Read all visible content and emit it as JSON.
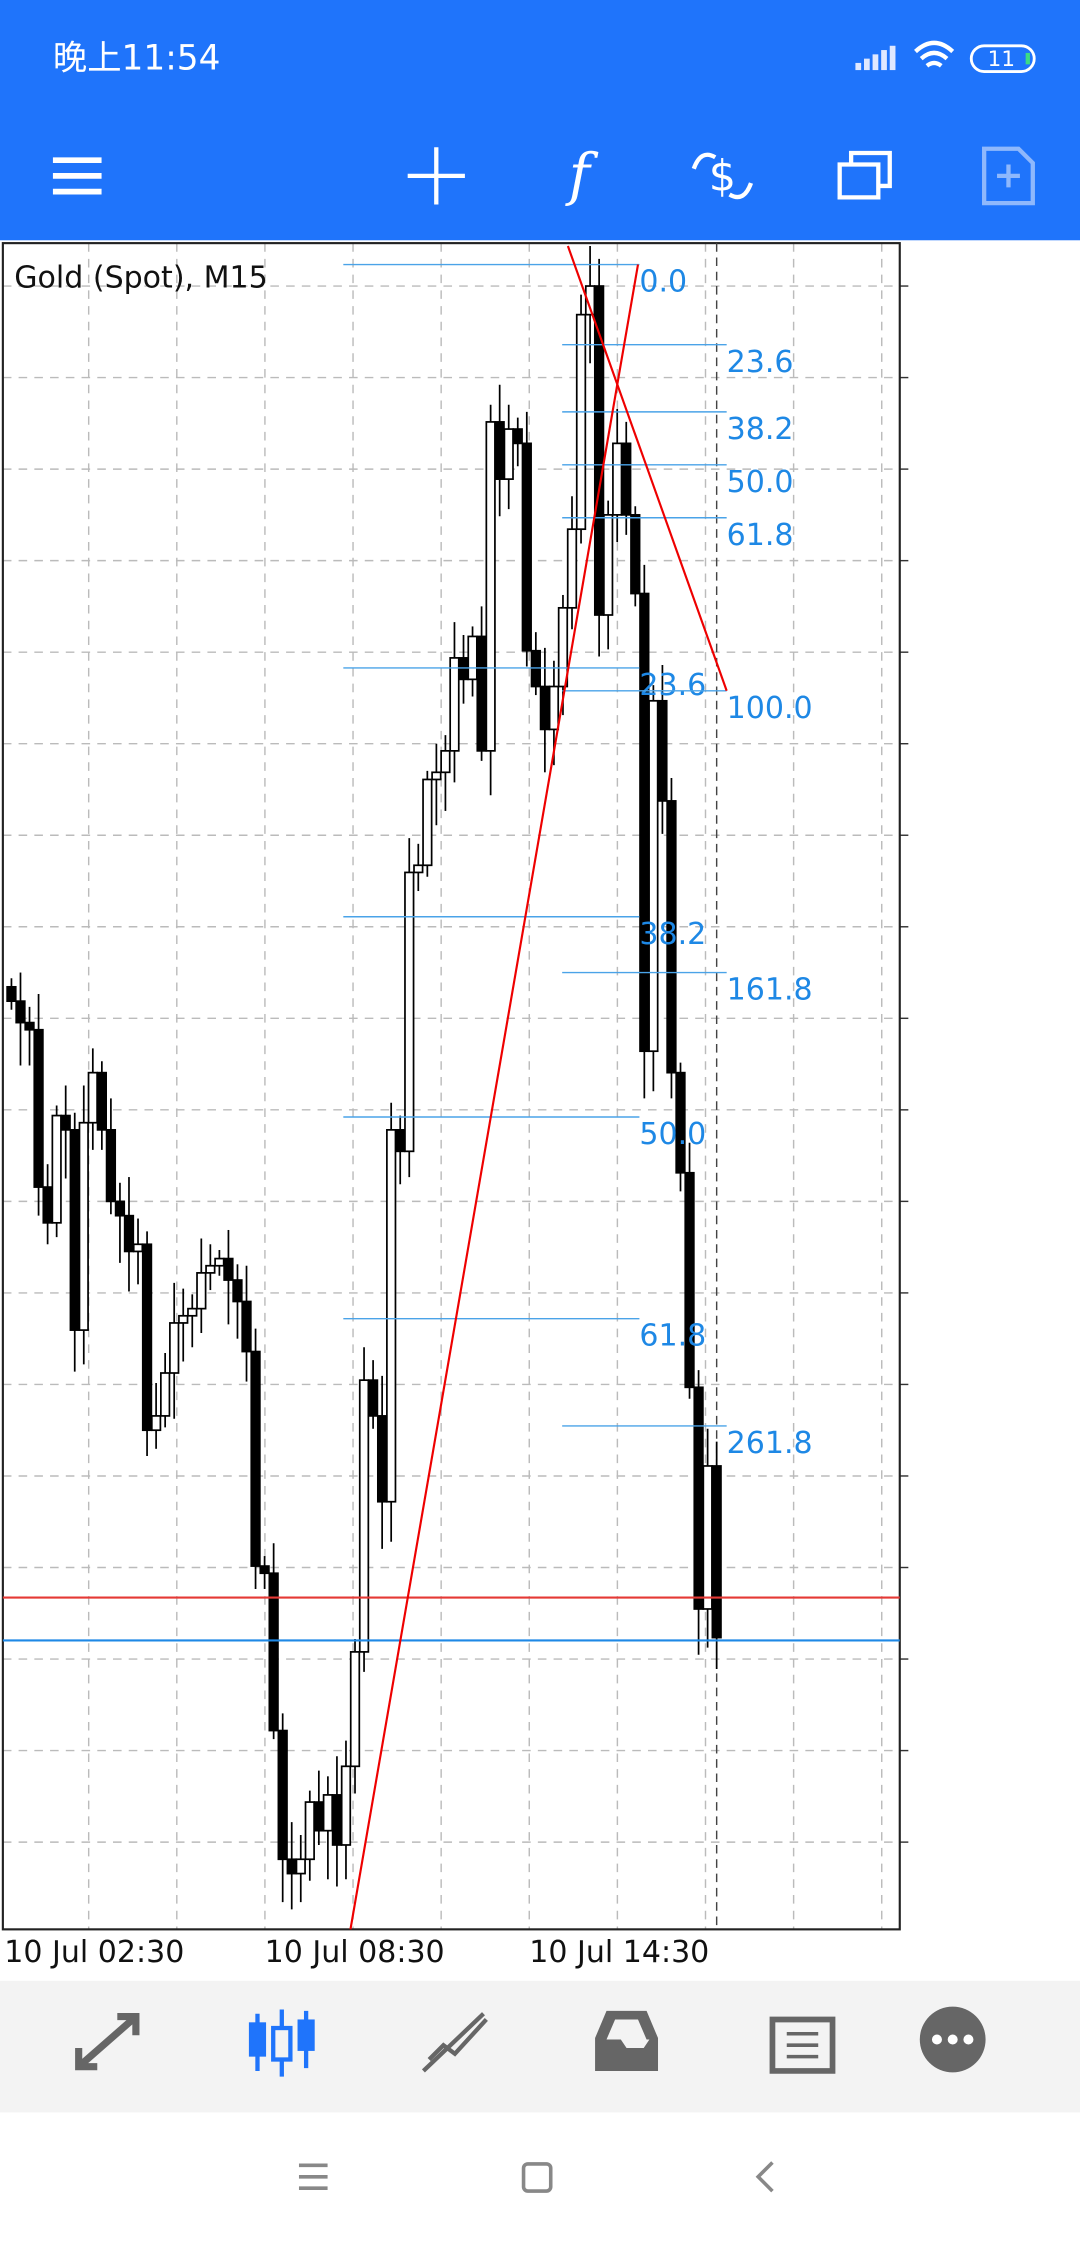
{
  "status_bar": {
    "time": "晚上11:54",
    "battery": "11"
  },
  "chart": {
    "symbol": "Gold (Spot), M15",
    "fib_a_levels": [
      "0.0",
      "23.6",
      "38.2",
      "50.0",
      "61.8"
    ],
    "fib_b_levels": [
      "23.6",
      "38.2",
      "50.0",
      "61.8",
      "100.0",
      "161.8",
      "261.8"
    ],
    "time_labels": [
      "10 Jul 02:30",
      "10 Jul 08:30",
      "10 Jul 14:30"
    ]
  }
}
